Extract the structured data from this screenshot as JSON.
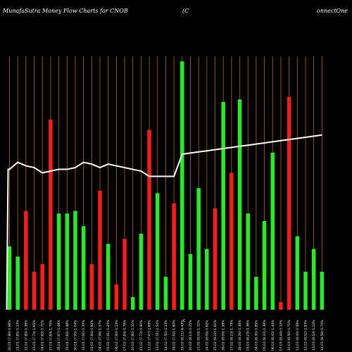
{
  "header": {
    "title_left": "MunafaSutra  Money Flow  Charts for CNOB",
    "title_mid": "(C",
    "title_right": "onnectOne"
  },
  "center_label": "C",
  "colors": {
    "background": "#000000",
    "grid": "#b8660b",
    "up": "#22ee22",
    "down": "#ff1a1a",
    "line": "#ffffff",
    "text": "#ffffff"
  },
  "chart_data": {
    "type": "bar",
    "title": "MunafaSutra  Money Flow  Charts for CNOB",
    "xlabel": "",
    "ylabel": "",
    "ylim": [
      0,
      100
    ],
    "grid": true,
    "categories": [
      "20.01 (7.89) 0.96%",
      "21.01 (7.85) 0.13%",
      "22.01 (7.89) 0.36%",
      "23.01 (7.74) 1.65%",
      "24.01 (7.69) 0.71%",
      "27.01 (7.84) 1.79%",
      "28.01 (7.87) 0.48%",
      "29.01 (7.83) 0.48%",
      "30.01 (7.95) 1.04%",
      "31.01 (7.92) 0.39%",
      "03.02 (7.84) 0.82%",
      "04.02 (7.96) 1.37%",
      "05.02 (7.91) 0.25%",
      "06.02 (7.90) 0.13%",
      "07.02 (7.84) 0.76%",
      "10.02 (7.80) 0.51%",
      "11.02 (7.73) 0.90%",
      "12.02 (7.47) 2.69%",
      "13.02 (7.51) 0.54%",
      "14.02 (7.50) 0.13%",
      "18.02 (7.62) 1.60%",
      "19.02 (8.11) 6.43%",
      "20.02 (8.13) 0.25%",
      "21.02 (8.04) 1.11%",
      "24.02 (8.09) 0.62%",
      "25.02 (8.22) 1.61%",
      "26.02 (8.09) 1.58%",
      "27.02 (8.23) 1.73%",
      "28.02 (8.26) 0.36%",
      "03.03 (8.23) 0.36%",
      "04.03 (8.30) 0.85%",
      "05.03 (8.33) 0.36%",
      "06.03 (8.45) 1.44%",
      "07.03 (8.44) 0.12%",
      "10.03 (8.50) 0.71%",
      "11.03 (8.45) 0.59%",
      "12.03 (8.52) 0.83%",
      "13.03 (8.53) 0.12%",
      "14.03 (8.59) 0.70%"
    ],
    "series": [
      {
        "values": [
          25,
          21,
          39,
          15,
          18,
          75,
          38,
          38,
          39,
          33,
          18,
          47,
          26,
          10,
          28,
          5,
          30,
          71,
          46,
          13,
          42,
          98,
          22,
          48,
          24,
          40,
          82,
          54,
          83,
          38,
          13,
          35,
          62,
          3,
          84,
          29,
          15,
          24,
          15
        ]
      }
    ],
    "direction": [
      "up",
      "up",
      "down",
      "down",
      "down",
      "down",
      "up",
      "up",
      "up",
      "up",
      "down",
      "down",
      "up",
      "down",
      "down",
      "up",
      "up",
      "down",
      "up",
      "up",
      "down",
      "up",
      "up",
      "up",
      "up",
      "down",
      "up",
      "down",
      "up",
      "up",
      "up",
      "up",
      "up",
      "down",
      "down",
      "up",
      "up",
      "up",
      "up"
    ],
    "line_values": [
      92,
      96,
      94,
      93,
      90,
      91,
      92,
      92,
      93,
      96,
      95,
      93,
      95,
      94,
      93,
      92,
      91,
      88,
      88,
      88,
      88,
      100,
      100,
      100,
      100,
      100,
      100,
      100,
      100,
      100,
      100,
      100,
      100,
      100,
      100,
      100,
      100,
      100,
      100
    ]
  }
}
